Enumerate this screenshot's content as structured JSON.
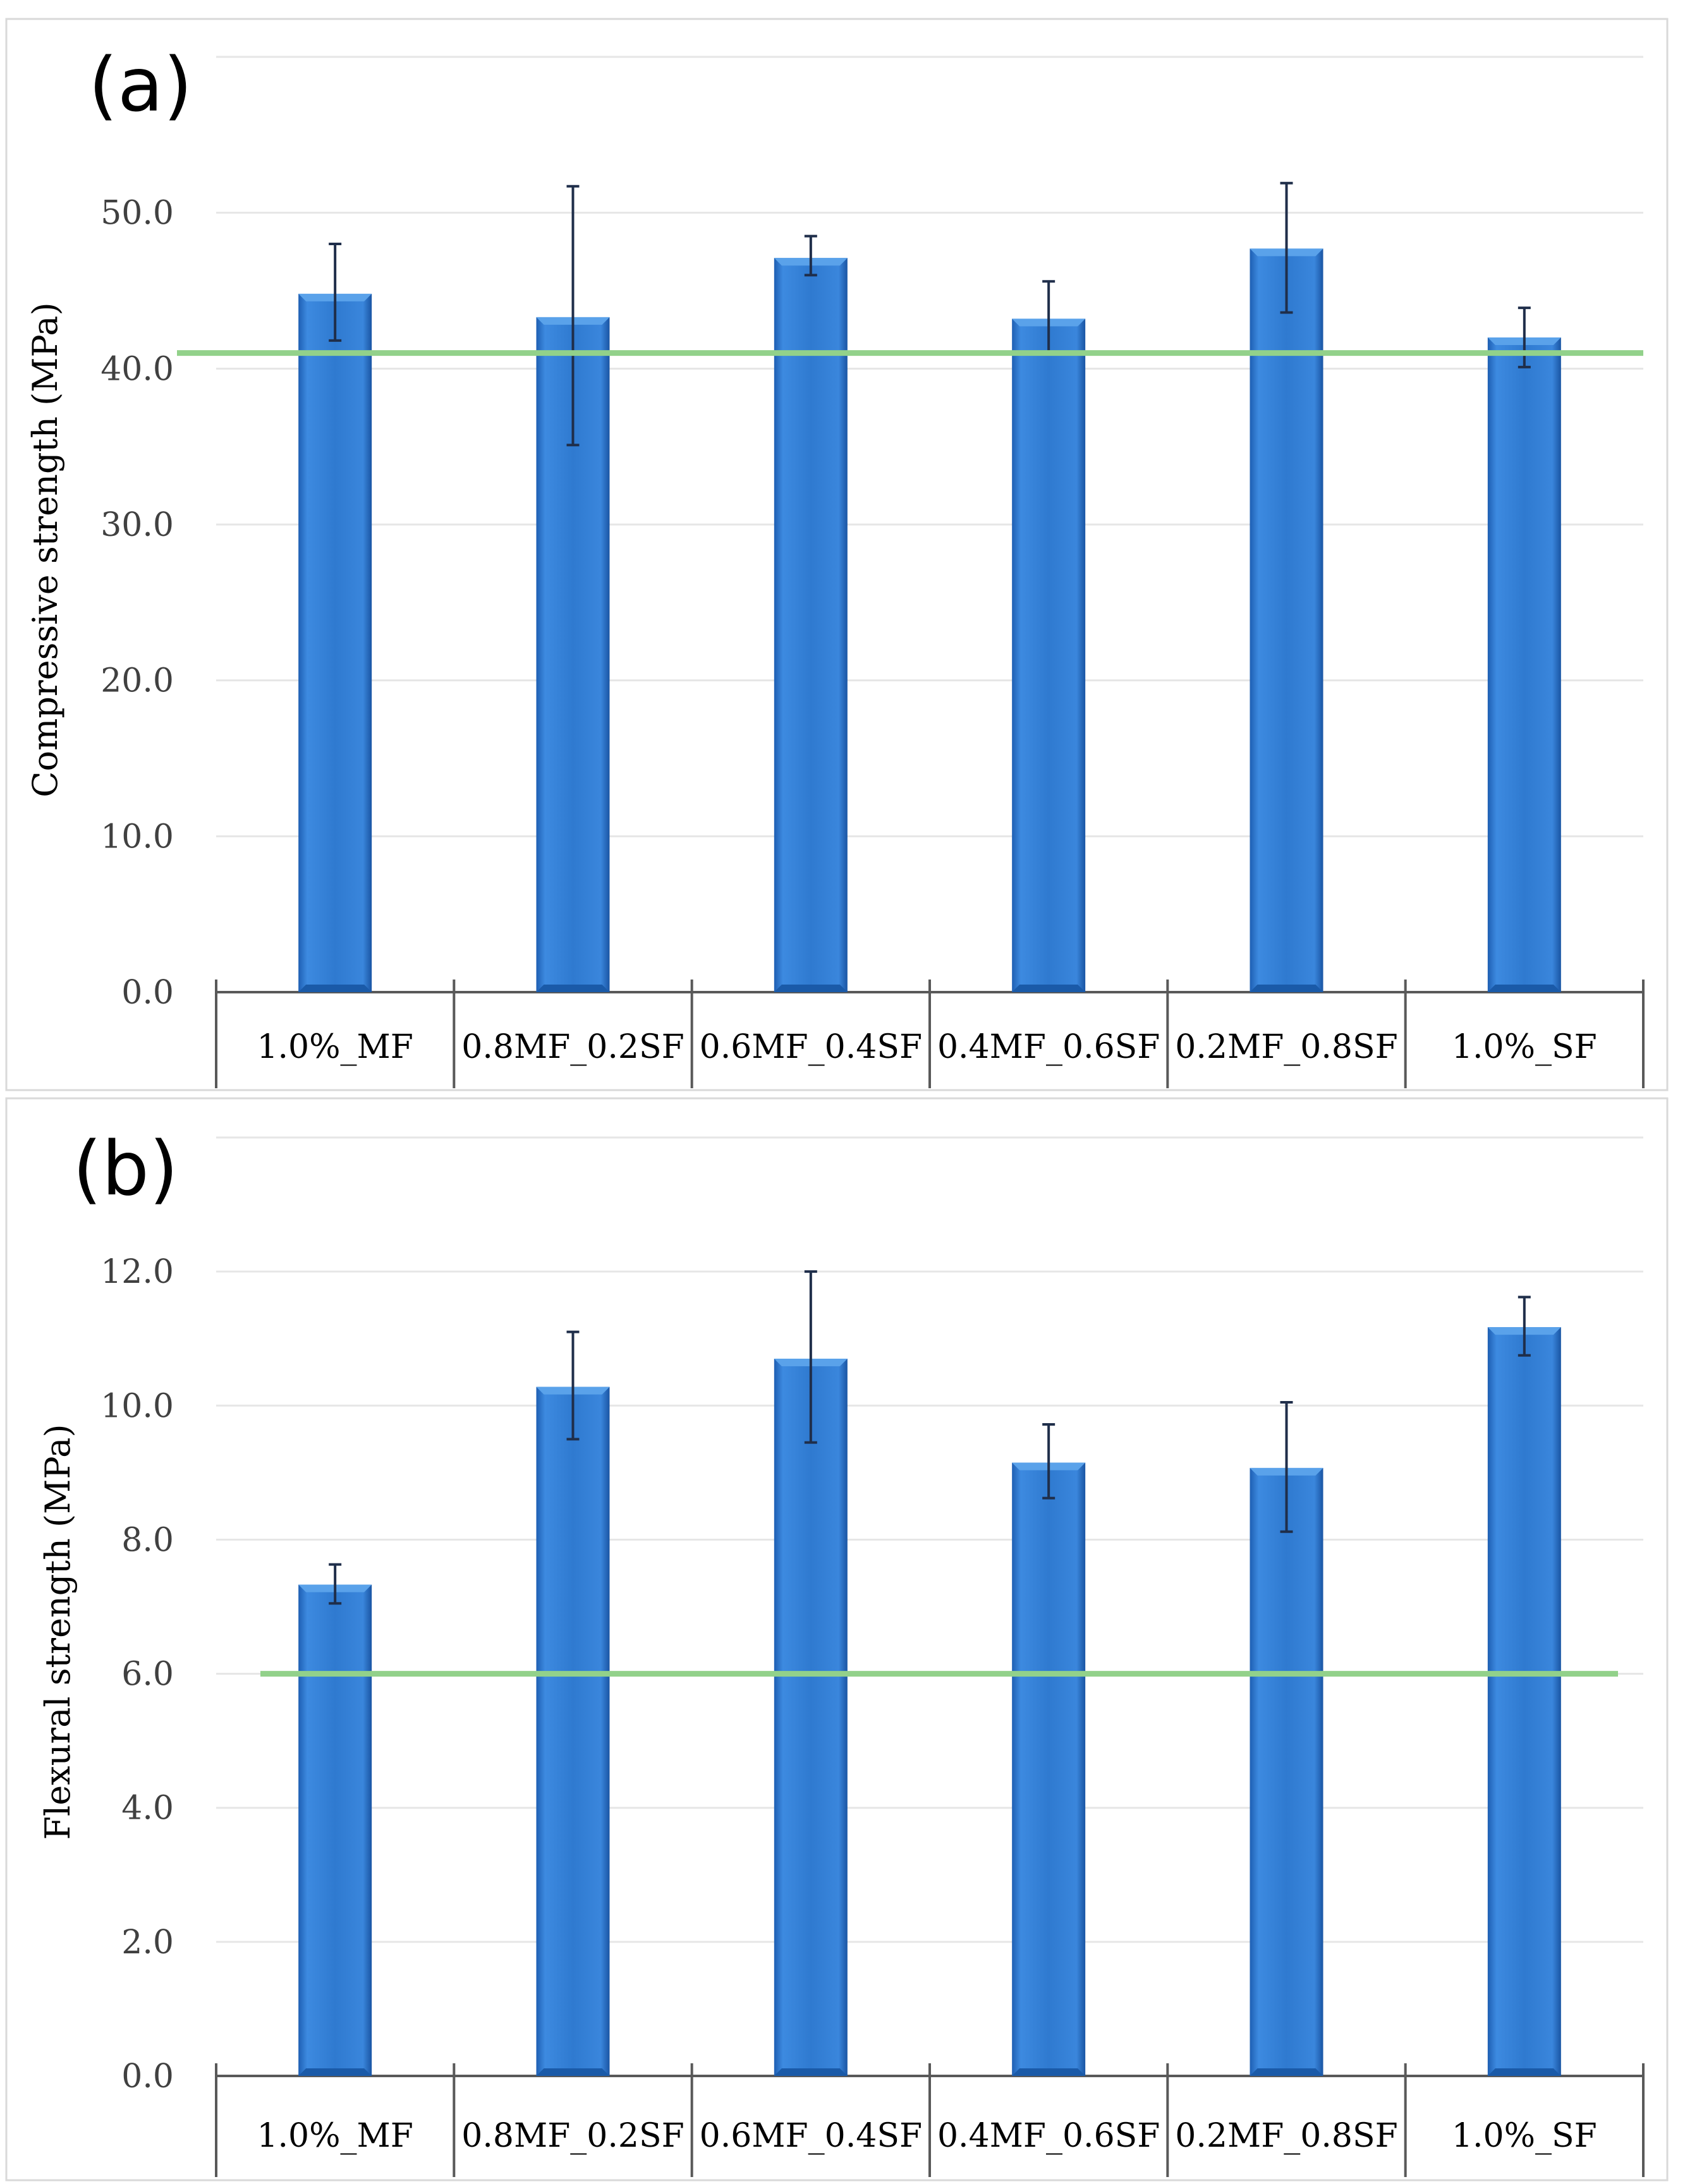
{
  "chart_data": [
    {
      "type": "bar",
      "panel_label": "(a)",
      "categories": [
        "1.0%_MF",
        "0.8MF_0.2SF",
        "0.6MF_0.4SF",
        "0.4MF_0.6SF",
        "0.2MF_0.8SF",
        "1.0%_SF"
      ],
      "values": [
        44.8,
        43.3,
        47.1,
        43.2,
        47.7,
        42.0
      ],
      "error_bars": [
        {
          "low": 41.8,
          "high": 48.0
        },
        {
          "low": 35.1,
          "high": 51.7
        },
        {
          "low": 46.0,
          "high": 48.5
        },
        {
          "low": 41.0,
          "high": 45.6
        },
        {
          "low": 43.6,
          "high": 51.9
        },
        {
          "low": 40.1,
          "high": 43.9
        }
      ],
      "reference_line": 41.0,
      "ylabel": "Compressive strength (MPa)",
      "xlabel": "",
      "ylim": [
        0,
        60
      ],
      "yticks": [
        "0.0",
        "10.0",
        "20.0",
        "30.0",
        "40.0",
        "50.0"
      ],
      "grid": true,
      "colors": {
        "bar": "#2f7ad0",
        "bar_light": "#5aa2ea",
        "bar_dark": "#1a5aa8",
        "reference": "#92d18a"
      }
    },
    {
      "type": "bar",
      "panel_label": "(b)",
      "categories": [
        "1.0%_MF",
        "0.8MF_0.2SF",
        "0.6MF_0.4SF",
        "0.4MF_0.6SF",
        "0.2MF_0.8SF",
        "1.0%_SF"
      ],
      "values": [
        7.33,
        10.28,
        10.7,
        9.15,
        9.07,
        11.17
      ],
      "error_bars": [
        {
          "low": 7.05,
          "high": 7.63
        },
        {
          "low": 9.5,
          "high": 11.1
        },
        {
          "low": 9.45,
          "high": 12.0
        },
        {
          "low": 8.62,
          "high": 9.72
        },
        {
          "low": 8.12,
          "high": 10.05
        },
        {
          "low": 10.75,
          "high": 11.62
        }
      ],
      "reference_line": 6.0,
      "ylabel": "Flexural strength (MPa)",
      "xlabel": "",
      "ylim": [
        0,
        14
      ],
      "yticks": [
        "0.0",
        "2.0",
        "4.0",
        "6.0",
        "8.0",
        "10.0",
        "12.0"
      ],
      "grid": true,
      "colors": {
        "bar": "#2f7ad0",
        "bar_light": "#5aa2ea",
        "bar_dark": "#1a5aa8",
        "reference": "#92d18a"
      }
    }
  ]
}
